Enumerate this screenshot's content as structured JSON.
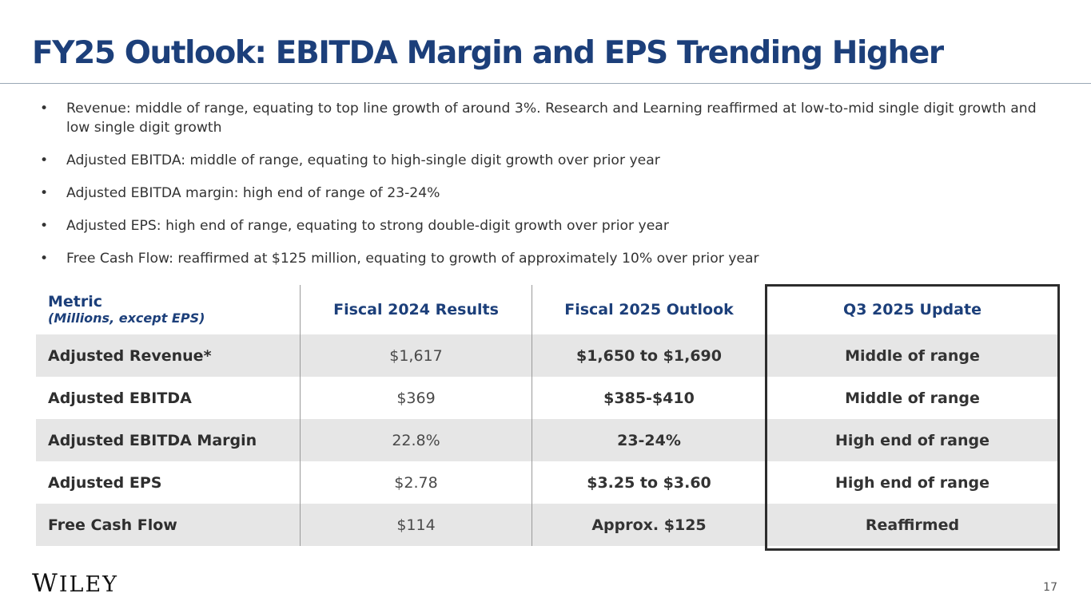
{
  "slide": {
    "title": "FY25 Outlook:  EBITDA Margin and EPS Trending Higher",
    "bullet_glyph": "•",
    "bullets": [
      "Revenue: middle of range, equating to top line growth of around 3%.  Research and Learning reaffirmed at low-to-mid single digit growth and low single digit growth",
      "Adjusted EBITDA: middle of range, equating to high-single digit growth over prior year",
      "Adjusted EBITDA margin: high end of range of 23-24%",
      "Adjusted EPS:  high end of range, equating to strong double-digit growth over prior year",
      "Free Cash Flow:  reaffirmed at $125 million, equating to growth of approximately 10% over prior year"
    ],
    "page_number": "17"
  },
  "table": {
    "header": {
      "metric": "Metric",
      "metric_note": "(Millions, except EPS)",
      "fy24": "Fiscal 2024 Results",
      "fy25": "Fiscal 2025 Outlook",
      "q3": "Q3 2025 Update"
    },
    "rows": [
      {
        "metric": "Adjusted Revenue*",
        "fy24": "$1,617",
        "fy25": "$1,650 to $1,690",
        "q3": "Middle of range"
      },
      {
        "metric": "Adjusted EBITDA",
        "fy24": "$369",
        "fy25": "$385-$410",
        "q3": "Middle of range"
      },
      {
        "metric": "Adjusted EBITDA Margin",
        "fy24": "22.8%",
        "fy25": "23-24%",
        "q3": "High end of range"
      },
      {
        "metric": "Adjusted EPS",
        "fy24": "$2.78",
        "fy25": "$3.25 to $3.60",
        "q3": "High end of range"
      },
      {
        "metric": "Free Cash Flow",
        "fy24": "$114",
        "fy25": "Approx. $125",
        "q3": "Reaffirmed"
      }
    ]
  },
  "brand": {
    "logo_initial": "W",
    "logo_rest": "ILEY"
  },
  "colors": {
    "title_blue": "#1c3f7a",
    "row_shade": "#e6e6e6",
    "highlight_border": "#2d2d2d"
  }
}
